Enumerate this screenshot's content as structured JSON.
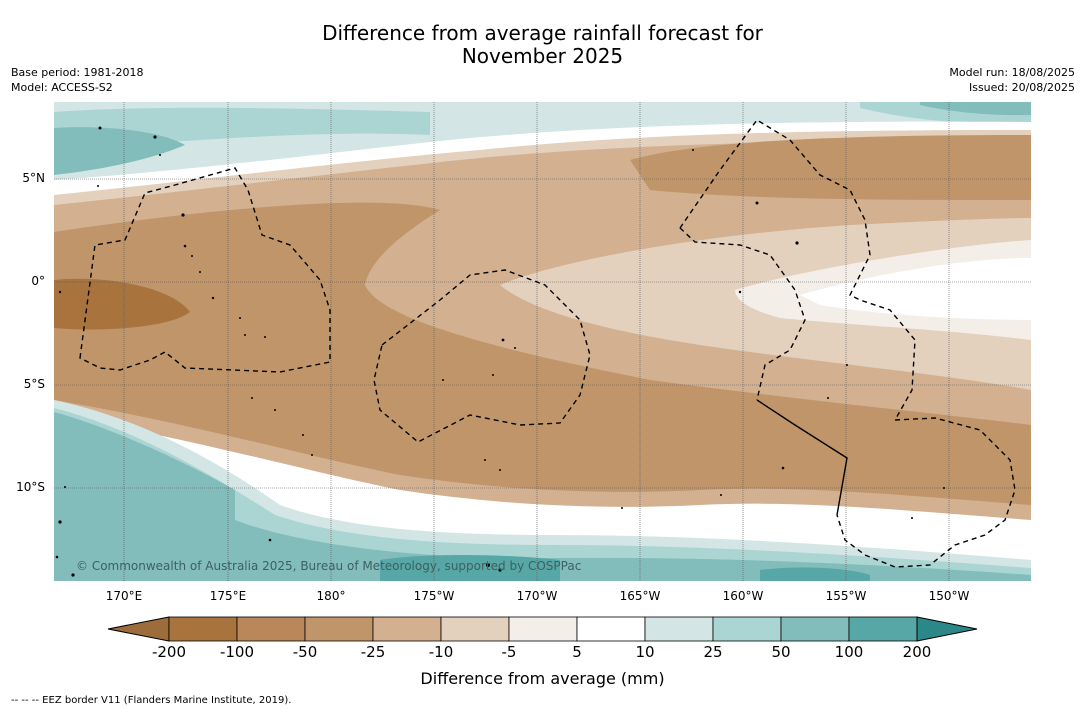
{
  "title_line1": "Difference from average rainfall forecast for",
  "title_line2": "November 2025",
  "meta": {
    "base_period": "Base period: 1981-2018",
    "model": "Model: ACCESS-S2",
    "model_run": "Model run: 18/08/2025",
    "issued": "Issued: 20/08/2025"
  },
  "map": {
    "credit": "© Commonwealth of Australia 2025, Bureau of Meteorology, supported by COSPPac",
    "longitude_labels": [
      "170°E",
      "175°E",
      "180°",
      "175°W",
      "170°W",
      "165°W",
      "160°W",
      "155°W",
      "150°W"
    ],
    "latitude_labels": [
      "5°N",
      "0°",
      "5°S",
      "10°S"
    ]
  },
  "colorbar": {
    "title": "Difference from average (mm)",
    "tick_labels": [
      "-200",
      "-100",
      "-50",
      "-25",
      "-10",
      "-5",
      "5",
      "10",
      "25",
      "50",
      "100",
      "200"
    ],
    "colors": [
      "#a8733c",
      "#b9875a",
      "#c09569",
      "#d2b090",
      "#e3d0bd",
      "#f3eee8",
      "#ffffff",
      "#d3e6e5",
      "#abd5d3",
      "#82bdbc",
      "#57a7a6",
      "#349695"
    ],
    "extend_low_color": "#9c6c3a",
    "extend_high_color": "#2c8888"
  },
  "footnote": "--  --  -- EEZ border V11 (Flanders Marine Institute, 2019)."
}
